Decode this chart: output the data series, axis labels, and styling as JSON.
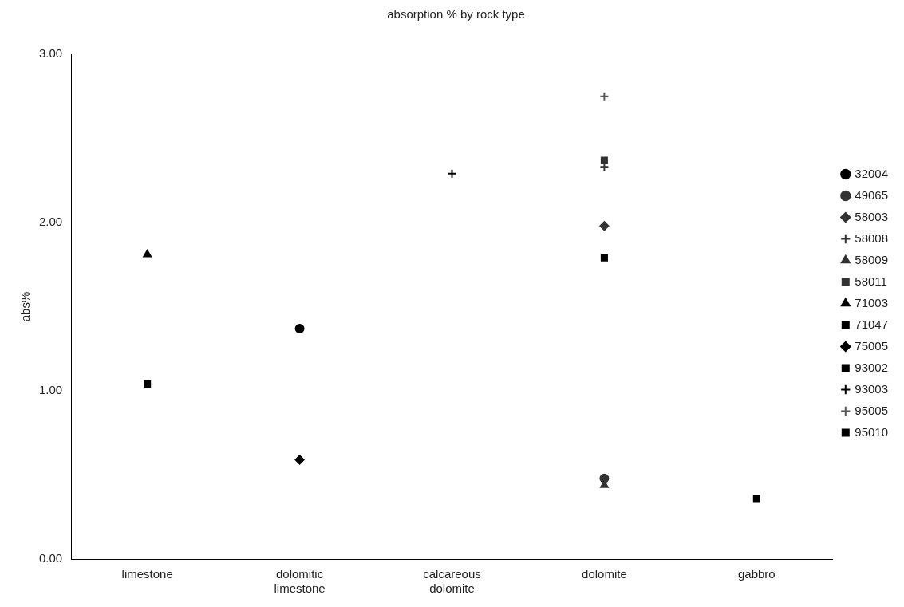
{
  "chart_data": {
    "type": "scatter",
    "title": "absorption % by rock type",
    "ylabel": "abs%",
    "categories": [
      "limestone",
      "dolomitic limestone",
      "calcareous dolomite",
      "dolomite",
      "gabbro"
    ],
    "ylim": [
      0,
      3
    ],
    "yticks": [
      {
        "value": 0,
        "label": "0.00"
      },
      {
        "value": 1,
        "label": "1.00"
      },
      {
        "value": 2,
        "label": "2.00"
      },
      {
        "value": 3,
        "label": "3.00"
      }
    ],
    "grid": false,
    "legend": "right",
    "series": [
      {
        "name": "32004",
        "color": "#000000",
        "marker": "circle",
        "x": [
          "dolomitic limestone"
        ],
        "values": [
          1.37
        ]
      },
      {
        "name": "49065",
        "color": "#333333",
        "marker": "circle",
        "x": [
          "dolomite"
        ],
        "values": [
          0.48
        ]
      },
      {
        "name": "58003",
        "color": "#333333",
        "marker": "diamond",
        "x": [
          "dolomite"
        ],
        "values": [
          1.98
        ]
      },
      {
        "name": "58008",
        "color": "#333333",
        "marker": "cross",
        "x": [
          "dolomite"
        ],
        "values": [
          2.33
        ]
      },
      {
        "name": "58009",
        "color": "#333333",
        "marker": "triangle",
        "x": [
          "dolomite"
        ],
        "values": [
          0.44
        ]
      },
      {
        "name": "58011",
        "color": "#333333",
        "marker": "square",
        "x": [
          "dolomite"
        ],
        "values": [
          2.37
        ]
      },
      {
        "name": "71003",
        "color": "#000000",
        "marker": "triangle",
        "x": [
          "limestone"
        ],
        "values": [
          1.81
        ]
      },
      {
        "name": "71047",
        "color": "#000000",
        "marker": "square",
        "x": [
          "limestone"
        ],
        "values": [
          1.04
        ]
      },
      {
        "name": "75005",
        "color": "#000000",
        "marker": "diamond",
        "x": [
          "dolomitic limestone"
        ],
        "values": [
          0.59
        ]
      },
      {
        "name": "93002",
        "color": "#000000",
        "marker": "square",
        "x": [
          "dolomite"
        ],
        "values": [
          1.79
        ]
      },
      {
        "name": "93003",
        "color": "#000000",
        "marker": "cross",
        "x": [
          "calcareous dolomite"
        ],
        "values": [
          2.29
        ]
      },
      {
        "name": "95005",
        "color": "#555555",
        "marker": "cross",
        "x": [
          "dolomite"
        ],
        "values": [
          2.75
        ]
      },
      {
        "name": "95010",
        "color": "#000000",
        "marker": "square",
        "x": [
          "gabbro"
        ],
        "values": [
          0.36
        ]
      }
    ]
  }
}
